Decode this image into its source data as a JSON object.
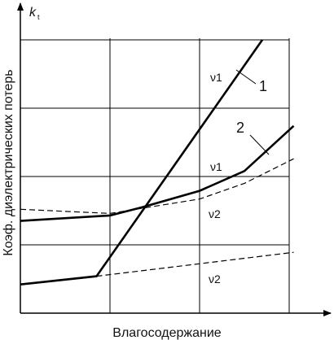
{
  "chart_data": {
    "type": "line",
    "y_axis_symbol": "k",
    "y_axis_symbol_sub": "t",
    "y_label": "Коэф. диэлектрических потерь",
    "x_label": "Влагосодержание",
    "xlim": [
      0,
      3.5
    ],
    "ylim": [
      0,
      4.5
    ],
    "grid_x": [
      1,
      2,
      3
    ],
    "grid_y": [
      1,
      2,
      3,
      4
    ],
    "series": [
      {
        "name": "1",
        "color": "#000000",
        "dashed": false,
        "x": [
          0,
          0.85,
          2.7
        ],
        "values": [
          0.42,
          0.54,
          4.0
        ]
      },
      {
        "name": "2",
        "color": "#000000",
        "dashed": false,
        "x": [
          0,
          1,
          1.36,
          2,
          2.5,
          3.05
        ],
        "values": [
          1.35,
          1.43,
          1.55,
          1.79,
          2.08,
          2.74
        ]
      },
      {
        "color": "#000000",
        "dashed": true,
        "x": [
          0,
          1,
          2,
          2.5,
          3.05
        ],
        "values": [
          1.52,
          1.46,
          1.67,
          1.9,
          2.26
        ]
      },
      {
        "color": "#000000",
        "dashed": true,
        "x": [
          0.85,
          3.05
        ],
        "values": [
          0.54,
          0.89
        ]
      }
    ],
    "annotations": [
      "ν1",
      "ν1",
      "ν2",
      "ν2"
    ]
  }
}
